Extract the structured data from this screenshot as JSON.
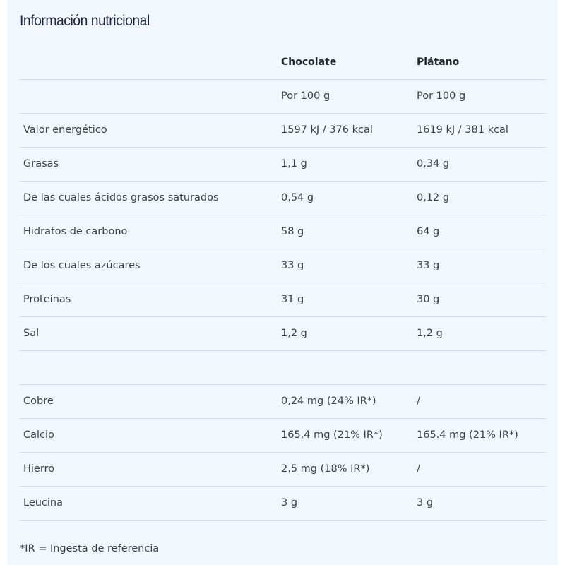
{
  "title": "Información nutricional",
  "columns": [
    "",
    "Chocolate",
    "Plátano"
  ],
  "rows": [
    [
      "",
      "Por 100 g",
      "Por 100 g"
    ],
    [
      "Valor energético",
      "1597 kJ / 376 kcal",
      "1619 kJ / 381 kcal"
    ],
    [
      "Grasas",
      "1,1 g",
      "0,34 g"
    ],
    [
      "De las cuales ácidos grasos saturados",
      "0,54 g",
      "0,12 g"
    ],
    [
      "Hidratos de carbono",
      "58 g",
      "64 g"
    ],
    [
      "De los cuales azúcares",
      "33 g",
      "33 g"
    ],
    [
      "Proteínas",
      "31 g",
      "30 g"
    ],
    [
      "Sal",
      "1,2 g",
      "1,2 g"
    ],
    [
      "",
      "",
      ""
    ],
    [
      "Cobre",
      "0,24 mg (24% IR*)",
      "/"
    ],
    [
      "Calcio",
      "165,4 mg (21% IR*)",
      "165.4 mg (21% IR*)"
    ],
    [
      "Hierro",
      "2,5 mg (18% IR*)",
      "/"
    ],
    [
      "Leucina",
      "3 g",
      "3 g"
    ]
  ],
  "footnote": "*IR = Ingesta de referencia"
}
